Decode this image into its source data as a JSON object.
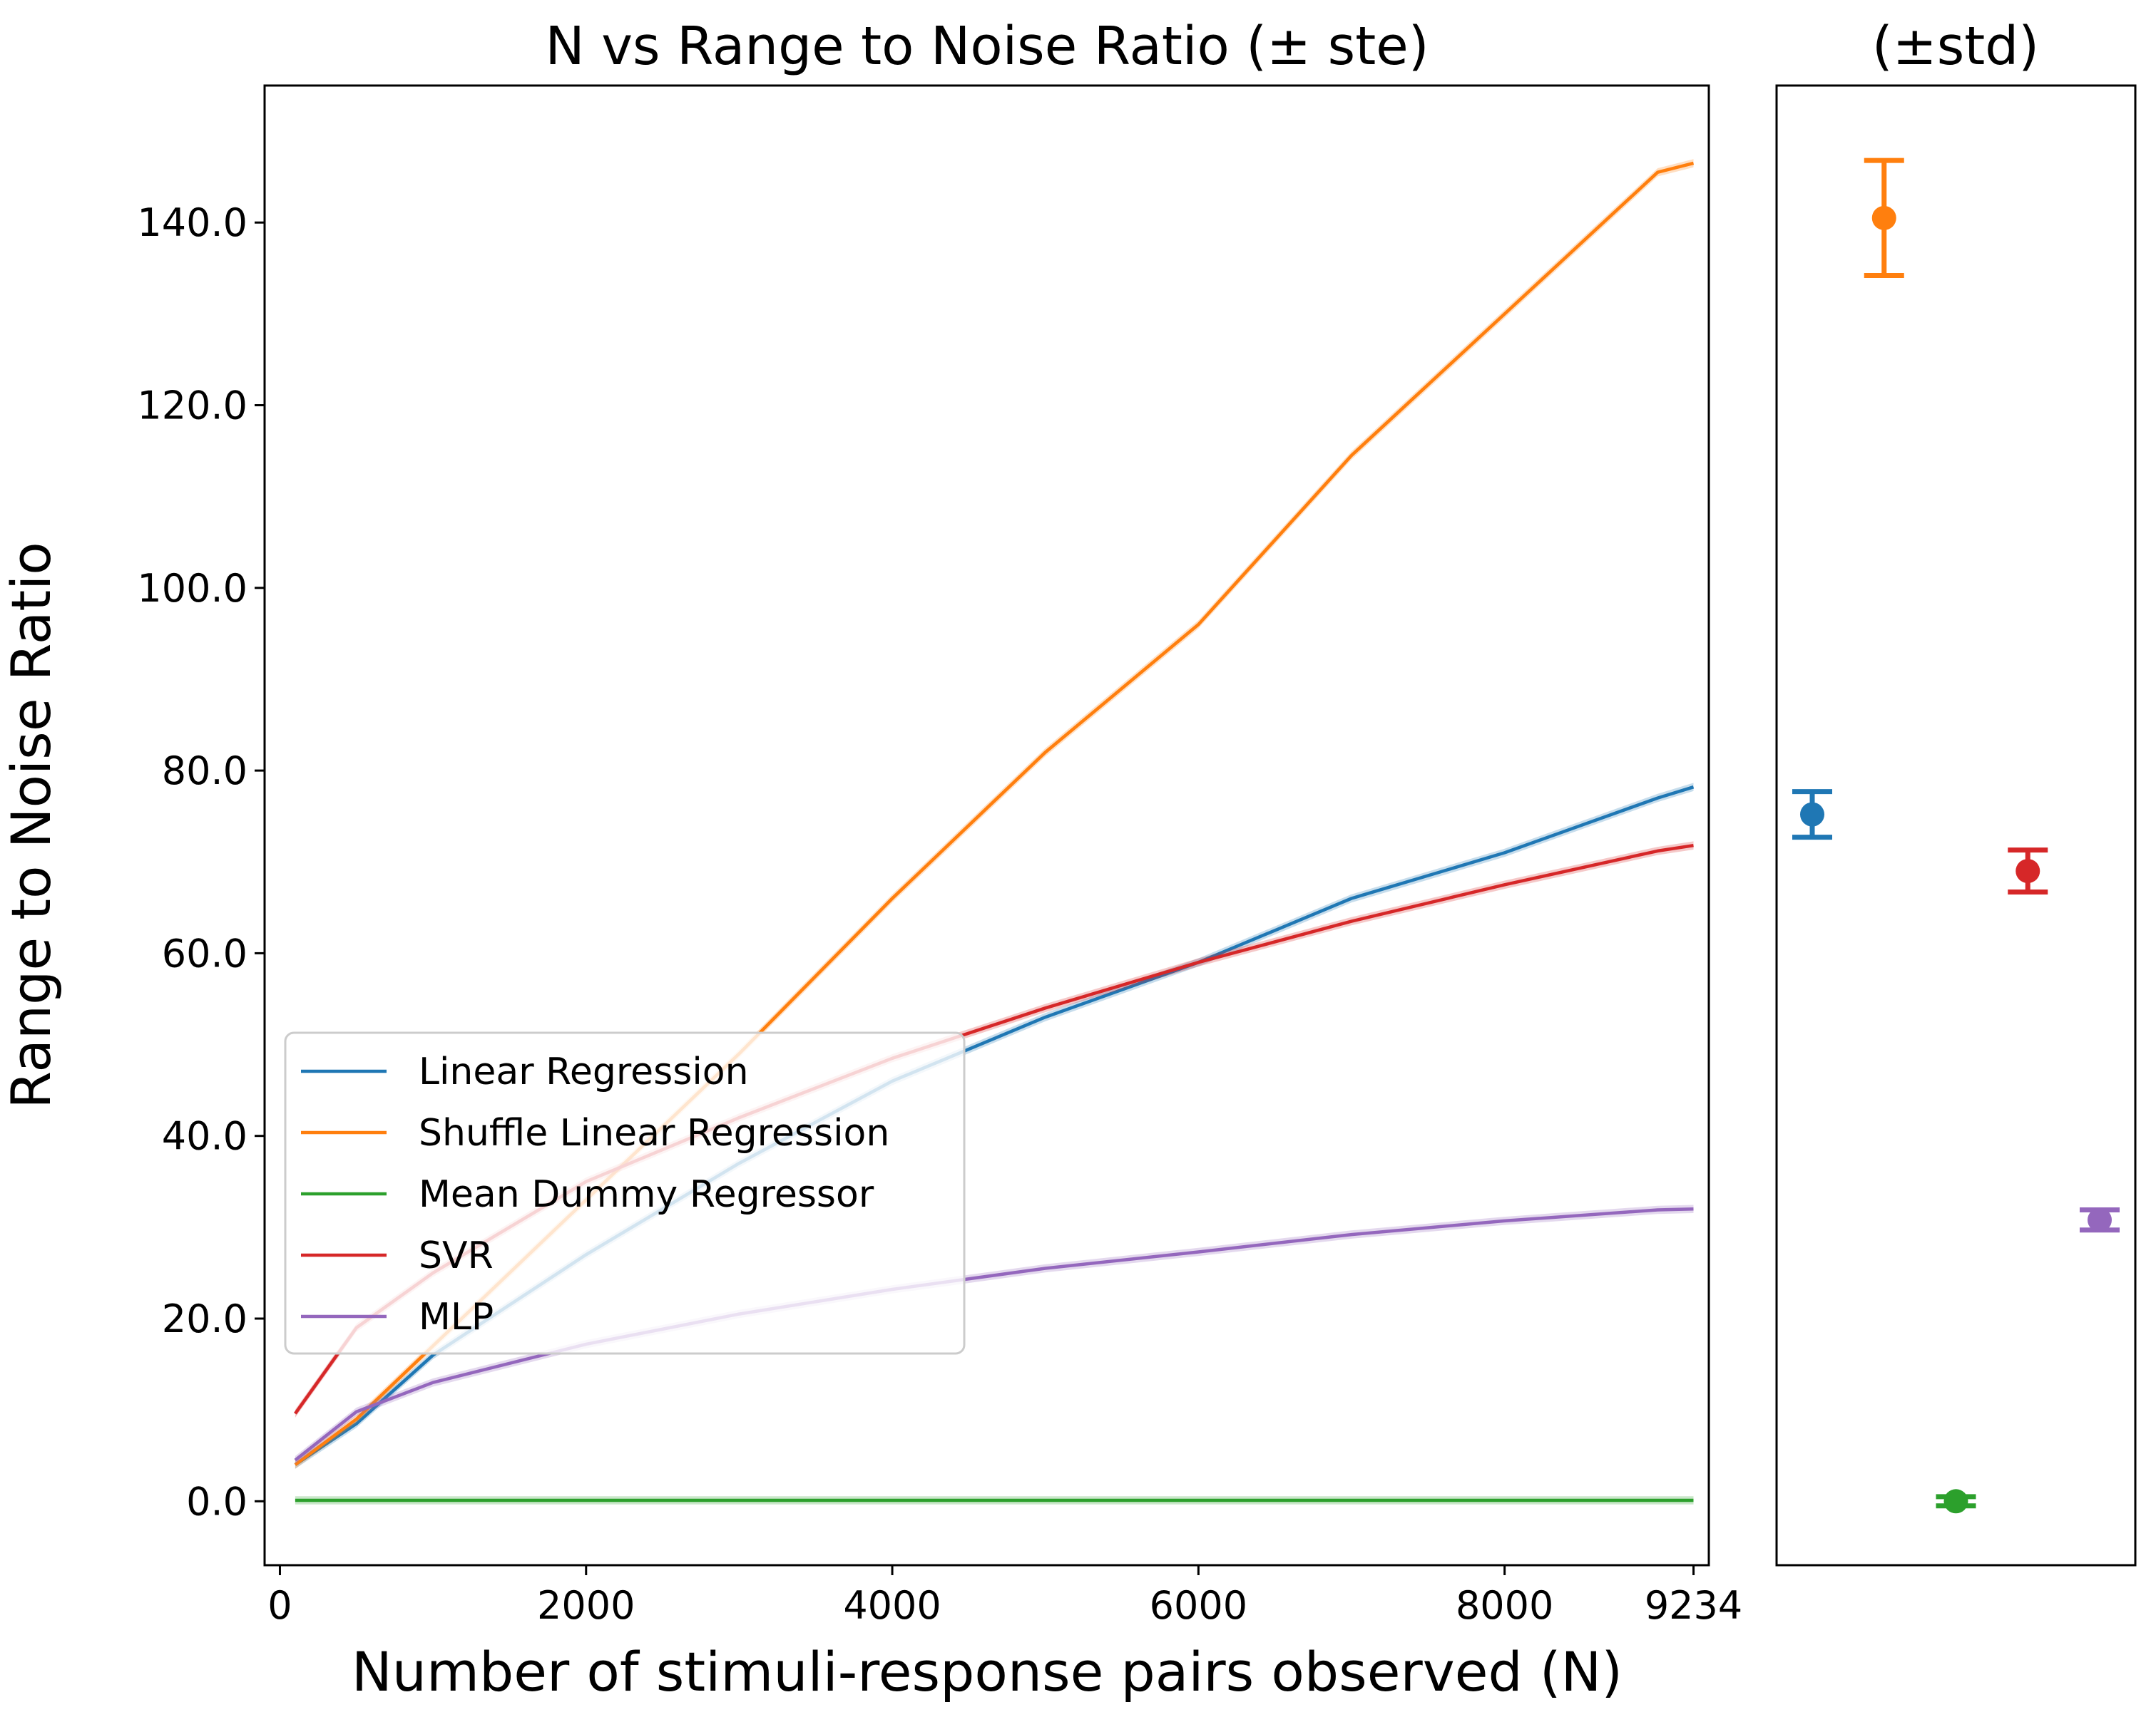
{
  "chart_data": [
    {
      "type": "line",
      "title": "N vs Range to Noise Ratio (± ste)",
      "xlabel": "Number of stimuli-response pairs observed (N)",
      "ylabel": "Range to Noise Ratio",
      "xlim": [
        -100,
        9334
      ],
      "ylim": [
        -7,
        155
      ],
      "xticks": [
        0,
        2000,
        4000,
        6000,
        8000,
        9234
      ],
      "yticks": [
        0,
        20,
        40,
        60,
        80,
        100,
        120,
        140
      ],
      "ytick_labels": [
        "0.0",
        "20.0",
        "40.0",
        "60.0",
        "80.0",
        "100.0",
        "120.0",
        "140.0"
      ],
      "legend": "lower-left",
      "x": [
        100,
        500,
        1000,
        2000,
        3000,
        4000,
        5000,
        6000,
        7000,
        8000,
        9000,
        9234
      ],
      "series": [
        {
          "name": "Linear Regression",
          "color": "#1f77b4",
          "values": [
            4.0,
            8.5,
            16.0,
            27.0,
            37.0,
            46.0,
            53.0,
            59.0,
            66.0,
            71.0,
            77.0,
            78.2
          ]
        },
        {
          "name": "Shuffle Linear Regression",
          "color": "#ff7f0e",
          "values": [
            4.0,
            9.0,
            17.0,
            33.0,
            49.0,
            66.0,
            82.0,
            96.0,
            114.5,
            130.0,
            145.5,
            146.5
          ]
        },
        {
          "name": "Mean Dummy Regressor",
          "color": "#2ca02c",
          "values": [
            0.1,
            0.1,
            0.1,
            0.1,
            0.1,
            0.1,
            0.1,
            0.1,
            0.1,
            0.1,
            0.1,
            0.1
          ]
        },
        {
          "name": "SVR",
          "color": "#d62728",
          "values": [
            9.6,
            19.0,
            25.0,
            35.0,
            42.0,
            48.5,
            54.0,
            59.0,
            63.5,
            67.5,
            71.2,
            71.8
          ]
        },
        {
          "name": "MLP",
          "color": "#9467bd",
          "values": [
            4.5,
            9.8,
            13.0,
            17.2,
            20.5,
            23.2,
            25.5,
            27.3,
            29.2,
            30.7,
            31.9,
            32.0
          ]
        }
      ]
    },
    {
      "type": "scatter",
      "title": "(±std)",
      "ylim": [
        -7,
        155
      ],
      "series": [
        {
          "name": "Linear Regression",
          "color": "#1f77b4",
          "value": 75.2,
          "err": 2.5
        },
        {
          "name": "Shuffle Linear Regression",
          "color": "#ff7f0e",
          "value": 140.5,
          "err": 6.3
        },
        {
          "name": "Mean Dummy Regressor",
          "color": "#2ca02c",
          "value": 0.0,
          "err": 0.5
        },
        {
          "name": "SVR",
          "color": "#d62728",
          "value": 69.0,
          "err": 2.3
        },
        {
          "name": "MLP",
          "color": "#9467bd",
          "value": 30.8,
          "err": 1.1
        }
      ]
    }
  ]
}
